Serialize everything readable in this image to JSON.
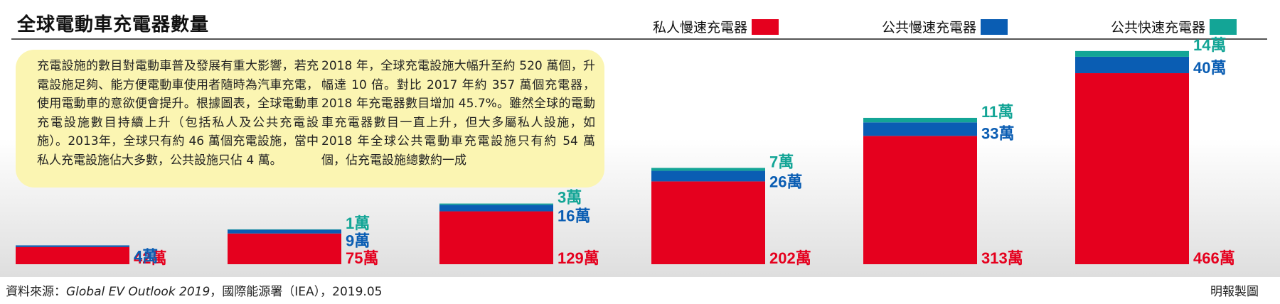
{
  "header": {
    "title": "全球電動車充電器數量"
  },
  "note": {
    "col1": "充電設施的數目對電動車普及發展有重大影響，若充電設施足夠、能方便電動車使用者隨時為汽車充電，使用電動車的意欲便會提升。根據圖表，全球電動車充電設施數目持續上升（包括私人及公共充電設施）。2013年，全球只有約 46 萬個充電設施，當中私人充電設施佔大多數，公共設施只佔 4 萬。",
    "col2": "2018 年，全球充電設施大幅升至約 520 萬個，升幅達 10 倍。對比 2017 年約 357 萬個充電器，2018 年充電器數目增加 45.7%。雖然全球的電動車充電器數目一直上升，但大多屬私人設施，如 2018 年全球公共電動車充電設施只有約 54 萬個，佔充電設施總數約一成"
  },
  "footer": {
    "source_prefix": "資料來源：",
    "source_title": "Global EV Outlook 2019",
    "source_suffix": "，國際能源署（IEA），2019.05",
    "credit": "明報製圖"
  },
  "colors": {
    "private_slow": "#e5001e",
    "public_slow": "#0a5db3",
    "public_fast": "#13a596"
  },
  "chart_data": {
    "type": "bar",
    "stacked": true,
    "title": "全球電動車充電器數量",
    "unit": "萬",
    "categories": [
      "",
      "",
      "",
      "",
      "",
      ""
    ],
    "series": [
      {
        "name": "私人慢速充電器",
        "color": "#e5001e",
        "values": [
          42,
          75,
          129,
          202,
          313,
          466
        ]
      },
      {
        "name": "公共慢速充電器",
        "color": "#0a5db3",
        "values": [
          4,
          9,
          16,
          26,
          33,
          40
        ]
      },
      {
        "name": "公共快速充電器",
        "color": "#13a596",
        "values": [
          0,
          1,
          3,
          7,
          11,
          14
        ]
      }
    ],
    "labels": [
      {
        "private_slow": "42萬",
        "public_slow": "4萬",
        "public_fast": ""
      },
      {
        "private_slow": "75萬",
        "public_slow": "9萬",
        "public_fast": "1萬"
      },
      {
        "private_slow": "129萬",
        "public_slow": "16萬",
        "public_fast": "3萬"
      },
      {
        "private_slow": "202萬",
        "public_slow": "26萬",
        "public_fast": "7萬"
      },
      {
        "private_slow": "313萬",
        "public_slow": "33萬",
        "public_fast": "11萬"
      },
      {
        "private_slow": "466萬",
        "public_slow": "40萬",
        "public_fast": "14萬"
      }
    ],
    "legend_position": "top-right",
    "grid": false
  }
}
